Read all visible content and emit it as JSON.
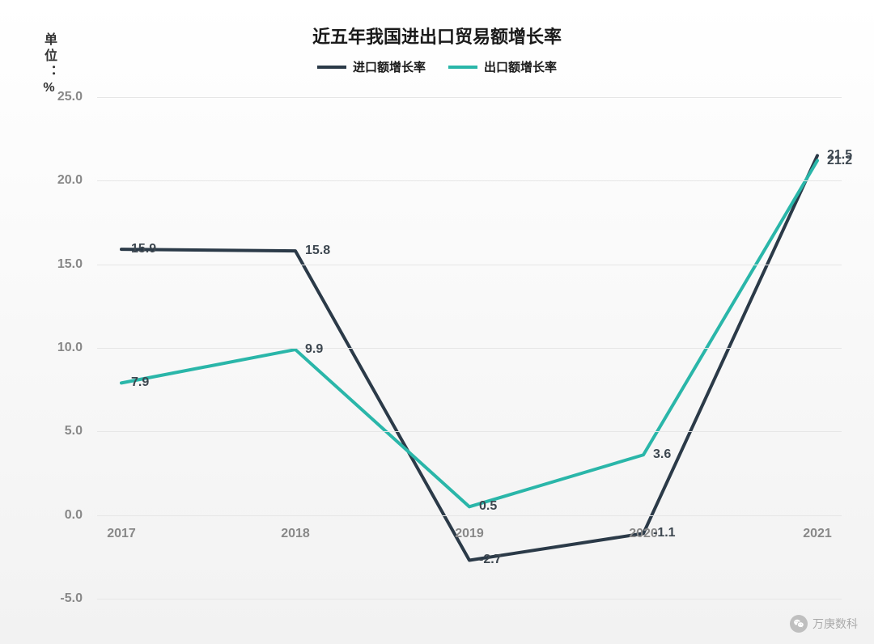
{
  "chart": {
    "type": "line",
    "title": "近五年我国进出口贸易额增长率",
    "title_fontsize": 22,
    "y_axis_title": "单位：%",
    "y_axis_title_fontsize": 16,
    "background_gradient_top": "#ffffff",
    "background_gradient_bottom": "#f2f2f2",
    "grid_color": "#e6e6e6",
    "tick_color": "#888888",
    "tick_fontsize": 16,
    "data_label_color": "#3d4750",
    "data_label_fontsize": 16,
    "line_width": 4,
    "categories": [
      "2017",
      "2018",
      "2019",
      "2020",
      "2021"
    ],
    "ylim": [
      -5.0,
      25.0
    ],
    "ytick_step": 5.0,
    "yticks": [
      "-5.0",
      "0.0",
      "5.0",
      "10.0",
      "15.0",
      "20.0",
      "25.0"
    ],
    "legend_fontsize": 15,
    "series": [
      {
        "name": "进口额增长率",
        "color": "#2b3a48",
        "values": [
          15.9,
          15.8,
          -2.7,
          -1.1,
          21.5
        ],
        "labels": [
          "15.9",
          "15.8",
          "-2.7",
          "-1.1",
          "21.5"
        ]
      },
      {
        "name": "出口额增长率",
        "color": "#2ab6a9",
        "values": [
          7.9,
          9.9,
          0.5,
          3.6,
          21.2
        ],
        "labels": [
          "7.9",
          "9.9",
          "0.5",
          "3.6",
          "21.2"
        ]
      }
    ]
  },
  "watermark": {
    "text": "万庚数科",
    "fontsize": 14,
    "color": "#aaaaaa",
    "icon_bg": "#bfbfbf"
  }
}
